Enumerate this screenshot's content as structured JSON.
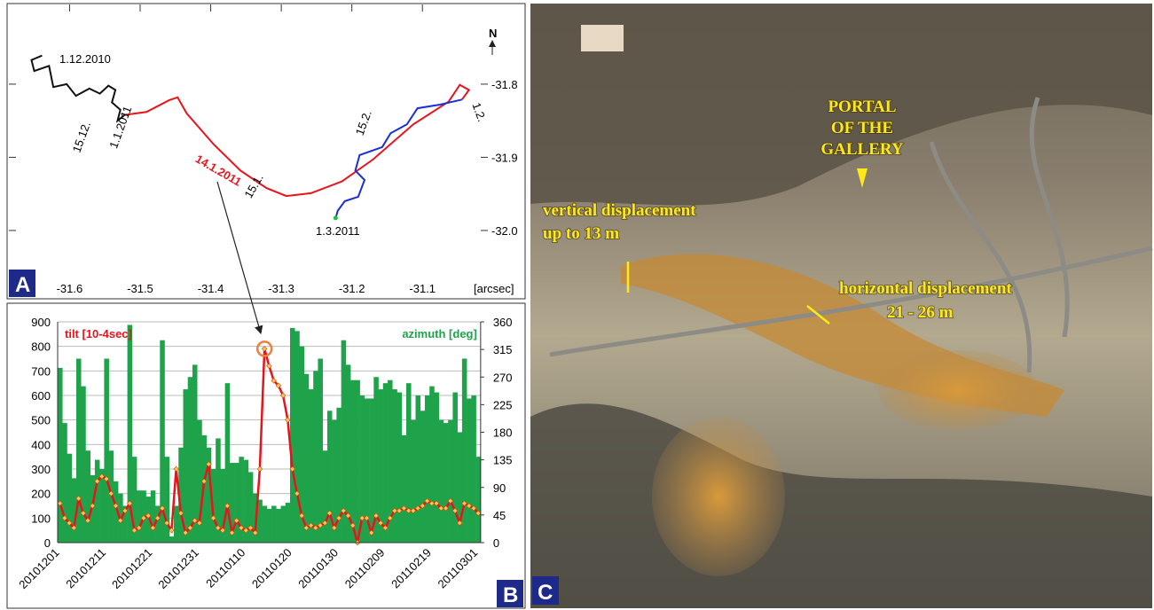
{
  "chart_data": [
    {
      "type": "trajectory",
      "panel": "A",
      "xlabel": "[arcsec]",
      "north": "N",
      "xlim": [
        -31.686,
        -30.957
      ],
      "ylim": [
        -32.091,
        -31.691
      ],
      "xticks": [
        -31.6,
        -31.5,
        -31.4,
        -31.3,
        -31.2,
        -31.1
      ],
      "yticks": [
        -31.8,
        -31.9,
        {
          "value": -32,
          "label": "-32.0"
        }
      ],
      "annotations": [
        "1.12.2010",
        "15.12.",
        "1.1.2011",
        "14.1.2011",
        "15.1.",
        "15.2.",
        "1.2.",
        "1.3.2011"
      ],
      "series": [
        {
          "color": "#111111",
          "x": [
            -31.639,
            -31.654,
            -31.65,
            -31.629,
            -31.623,
            -31.604,
            -31.591,
            -31.572,
            -31.557,
            -31.545,
            -31.535,
            -31.54,
            -31.528,
            -31.532,
            -31.522
          ],
          "values": [
            -31.761,
            -31.767,
            -31.782,
            -31.775,
            -31.804,
            -31.8,
            -31.816,
            -31.806,
            -31.813,
            -31.802,
            -31.808,
            -31.825,
            -31.835,
            -31.85,
            -31.842
          ]
        },
        {
          "color": "#e8141b",
          "x": [
            -31.522,
            -31.491,
            -31.459,
            -31.447,
            -31.434,
            -31.396,
            -31.358,
            -31.321,
            -31.293,
            -31.258,
            -31.214,
            -31.17,
            -31.113,
            -31.063,
            -31.047,
            -31.034,
            -31.044
          ],
          "values": [
            -31.842,
            -31.838,
            -31.822,
            -31.818,
            -31.84,
            -31.882,
            -31.918,
            -31.942,
            -31.953,
            -31.949,
            -31.933,
            -31.903,
            -31.855,
            -31.824,
            -31.801,
            -31.808,
            -31.821
          ]
        },
        {
          "color": "#1a2fd6",
          "x": [
            -31.044,
            -31.075,
            -31.107,
            -31.122,
            -31.145,
            -31.157,
            -31.189,
            -31.195,
            -31.182,
            -31.191,
            -31.21,
            -31.22,
            -31.223
          ],
          "values": [
            -31.821,
            -31.828,
            -31.833,
            -31.855,
            -31.867,
            -31.886,
            -31.897,
            -31.918,
            -31.931,
            -31.954,
            -31.96,
            -31.973,
            -31.983
          ]
        },
        {
          "color": "#21c23a",
          "x": [
            -31.223
          ],
          "values": [
            -31.983
          ]
        }
      ]
    },
    {
      "type": "combo",
      "panel": "B",
      "categories": [
        "20101201",
        null,
        null,
        null,
        null,
        null,
        null,
        null,
        null,
        null,
        "20101211",
        null,
        null,
        null,
        null,
        null,
        null,
        null,
        null,
        null,
        "20101221",
        null,
        null,
        null,
        null,
        null,
        null,
        null,
        null,
        null,
        "20101231",
        null,
        null,
        null,
        null,
        null,
        null,
        null,
        null,
        null,
        "20110110",
        null,
        null,
        null,
        null,
        null,
        null,
        null,
        null,
        null,
        "20110120",
        null,
        null,
        null,
        null,
        null,
        null,
        null,
        null,
        null,
        "20110130",
        null,
        null,
        null,
        null,
        null,
        null,
        null,
        null,
        null,
        "20110209",
        null,
        null,
        null,
        null,
        null,
        null,
        null,
        null,
        null,
        "20110219",
        null,
        null,
        null,
        null,
        null,
        null,
        null,
        null,
        null,
        "20110301"
      ],
      "ylim": [
        0,
        900
      ],
      "yticks": [
        0,
        100,
        200,
        300,
        400,
        500,
        600,
        700,
        800,
        900
      ],
      "y2lim": [
        0,
        360
      ],
      "y2ticks": [
        0,
        45,
        90,
        135,
        180,
        225,
        270,
        315,
        360
      ],
      "grid": true,
      "series": [
        {
          "name": "azimuth [deg]",
          "type": "bar",
          "axis": "y2",
          "color": "#1fa34a",
          "values": [
            285,
            195,
            145,
            105,
            300,
            255,
            150,
            110,
            135,
            120,
            300,
            150,
            100,
            80,
            60,
            355,
            140,
            85,
            85,
            75,
            85,
            60,
            330,
            140,
            10,
            60,
            155,
            250,
            270,
            290,
            200,
            175,
            155,
            120,
            170,
            120,
            260,
            130,
            130,
            140,
            135,
            115,
            80,
            70,
            60,
            55,
            60,
            55,
            60,
            65,
            350,
            345,
            320,
            275,
            250,
            280,
            300,
            150,
            215,
            200,
            220,
            330,
            290,
            265,
            265,
            240,
            235,
            235,
            270,
            250,
            260,
            265,
            250,
            245,
            175,
            260,
            200,
            240,
            215,
            240,
            255,
            245,
            200,
            195,
            200,
            245,
            180,
            300,
            235,
            240,
            140
          ]
        },
        {
          "name": "tilt [10-4sec]",
          "type": "line",
          "color": "#e8141b",
          "values": [
            160,
            100,
            80,
            60,
            180,
            120,
            90,
            150,
            250,
            270,
            260,
            200,
            150,
            90,
            130,
            160,
            50,
            60,
            100,
            110,
            60,
            100,
            140,
            80,
            50,
            300,
            120,
            40,
            60,
            90,
            80,
            250,
            320,
            100,
            60,
            50,
            150,
            40,
            90,
            60,
            50,
            60,
            40,
            300,
            790,
            720,
            660,
            640,
            600,
            500,
            300,
            200,
            110,
            60,
            70,
            60,
            70,
            80,
            120,
            60,
            100,
            130,
            110,
            70,
            0,
            100,
            100,
            40,
            110,
            80,
            60,
            100,
            130,
            130,
            140,
            130,
            130,
            140,
            150,
            170,
            160,
            160,
            140,
            140,
            170,
            130,
            80,
            160,
            150,
            140,
            120
          ]
        }
      ]
    }
  ],
  "photo": {
    "panel": "C",
    "portal": [
      "PORTAL",
      "OF THE",
      "GALLERY"
    ],
    "vertical": [
      "vertical displacement",
      "up to 13 m"
    ],
    "horizontal": [
      "horizontal displacement",
      "21 - 26 m"
    ]
  }
}
